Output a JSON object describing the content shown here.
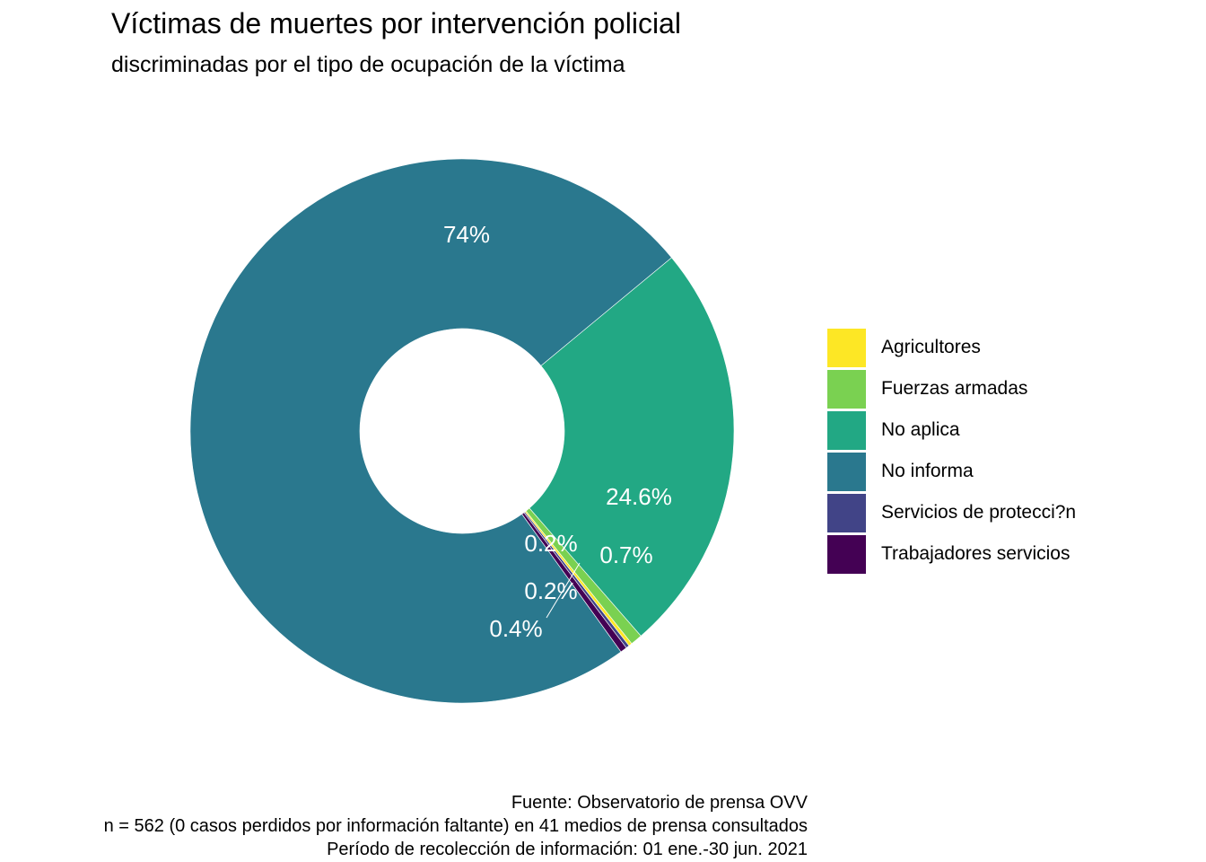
{
  "chart_data": {
    "type": "pie",
    "donut": true,
    "title": "Víctimas de muertes por intervención policial",
    "subtitle": "discriminadas por el tipo de ocupación de la víctima",
    "slices": [
      {
        "name": "Agricultores",
        "value": 0.2,
        "label": "0.2%",
        "color": "#FDE725"
      },
      {
        "name": "Fuerzas armadas",
        "value": 0.7,
        "label": "0.7%",
        "color": "#7AD151"
      },
      {
        "name": "No aplica",
        "value": 24.6,
        "label": "24.6%",
        "color": "#22A884"
      },
      {
        "name": "No informa",
        "value": 74.0,
        "label": "74%",
        "color": "#2A788E"
      },
      {
        "name": "Servicios de protecci?n",
        "value": 0.2,
        "label": "0.2%",
        "color": "#414487"
      },
      {
        "name": "Trabajadores servicios",
        "value": 0.4,
        "label": "0.4%",
        "color": "#440154"
      }
    ],
    "legend_position": "right",
    "caption": [
      "Fuente: Observatorio de prensa OVV ",
      "n = 562 (0 casos perdidos por información faltante) en 41 medios de prensa consultados",
      "Período de recolección de información: 01 ene.-30 jun. 2021"
    ]
  }
}
